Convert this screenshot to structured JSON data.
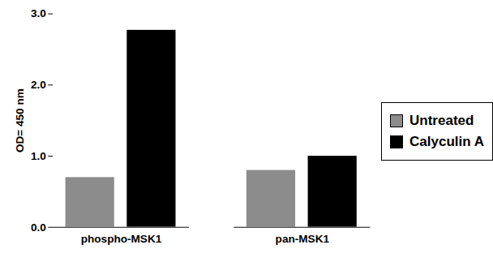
{
  "chart_data": {
    "type": "bar",
    "categories": [
      "phospho-MSK1",
      "pan-MSK1"
    ],
    "series": [
      {
        "name": "Untreated",
        "color": "#8c8c8c",
        "values": [
          0.7,
          0.8
        ]
      },
      {
        "name": "Calyculin A",
        "color": "#000000",
        "values": [
          2.77,
          1.0
        ]
      }
    ],
    "ylabel": "OD= 450 nm",
    "ylim": [
      0,
      3
    ],
    "yticks": [
      0,
      1,
      2,
      3
    ],
    "legend": "right"
  }
}
